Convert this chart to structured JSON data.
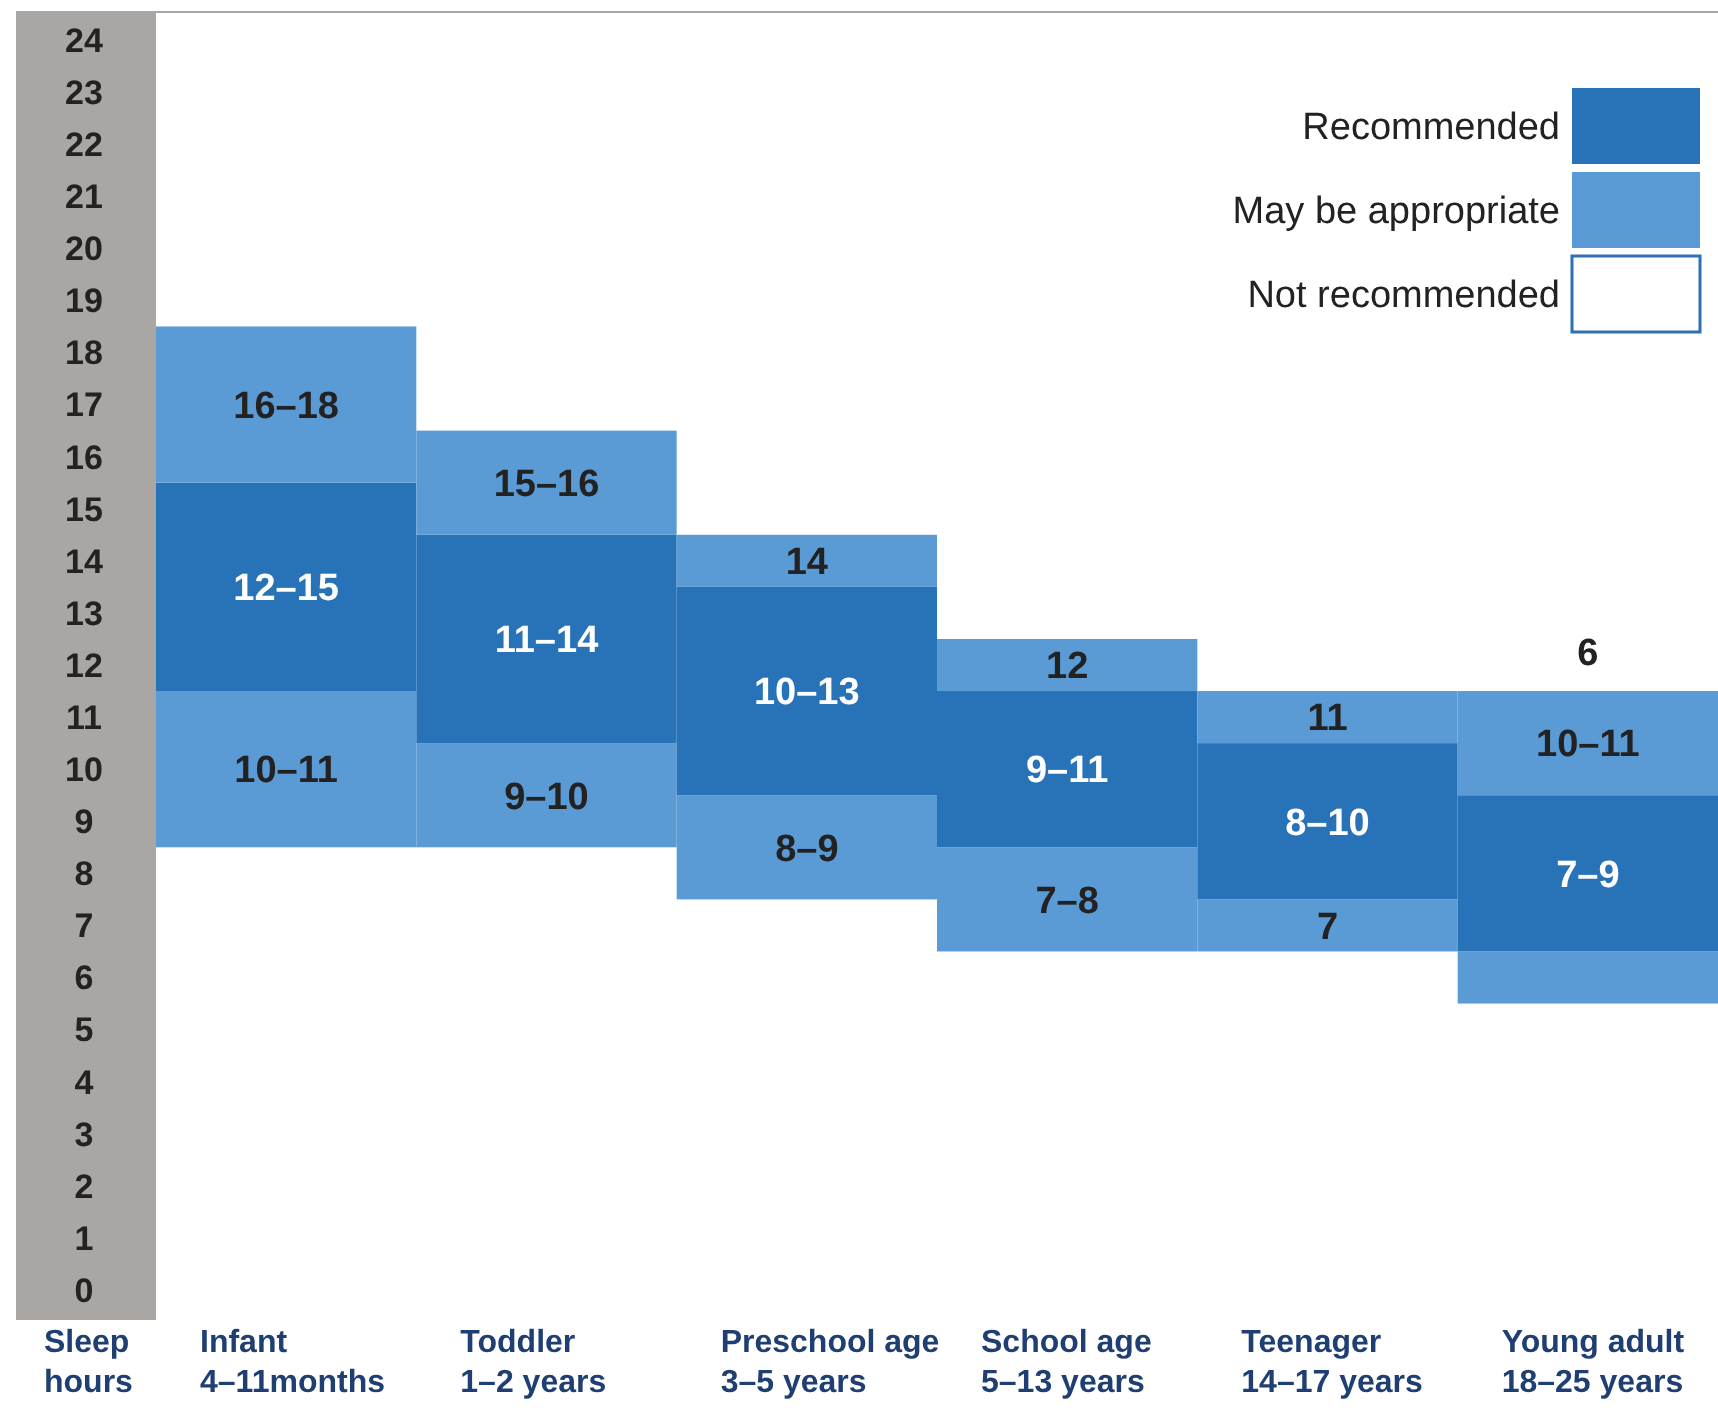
{
  "chart_data": {
    "type": "bar",
    "ylabel": "Sleep\nhours",
    "categories": [
      "Infant\n4–11months",
      "Toddler\n1–2 years",
      "Preschool age\n3–5 years",
      "School age\n5–13 years",
      "Teenager\n14–17 years",
      "Young adult\n18–25 years"
    ],
    "series": [
      {
        "name": "May be appropriate",
        "color": "#5b9bd5",
        "base": [
          8.5,
          8.5,
          7.5,
          6.5,
          6.5,
          5.5
        ],
        "values": [
          3,
          2,
          2,
          2,
          1,
          1
        ],
        "value_labels": [
          "10–11",
          "9–10",
          "8–9",
          "7–8",
          "7",
          null
        ]
      },
      {
        "name": "Recommended",
        "color": "#2872b7",
        "base": [
          11.5,
          10.5,
          9.5,
          8.5,
          7.5,
          6.5
        ],
        "values": [
          4,
          4,
          4,
          3,
          3,
          3
        ],
        "value_labels": [
          "12–15",
          "11–14",
          "10–13",
          "9–11",
          "8–10",
          "7–9"
        ]
      },
      {
        "color": "#5b9bd5",
        "base": [
          15.5,
          14.5,
          13.5,
          11.5,
          10.5,
          9.5
        ],
        "values": [
          3,
          2,
          1,
          1,
          1,
          2
        ],
        "value_labels": [
          "16–18",
          "15–16",
          "14",
          "12",
          "11",
          "10–11"
        ]
      },
      {
        "name": "Not recommended",
        "color": "#ffffff",
        "values": [
          null,
          null,
          null,
          null,
          null,
          null
        ]
      }
    ],
    "ylim": [
      0,
      24
    ],
    "yticks": [
      0,
      1,
      2,
      3,
      4,
      5,
      6,
      7,
      8,
      9,
      10,
      11,
      12,
      13,
      14,
      15,
      16,
      17,
      18,
      19,
      20,
      21,
      22,
      23,
      24
    ],
    "legend": "top right",
    "annotations": [
      "6"
    ]
  }
}
